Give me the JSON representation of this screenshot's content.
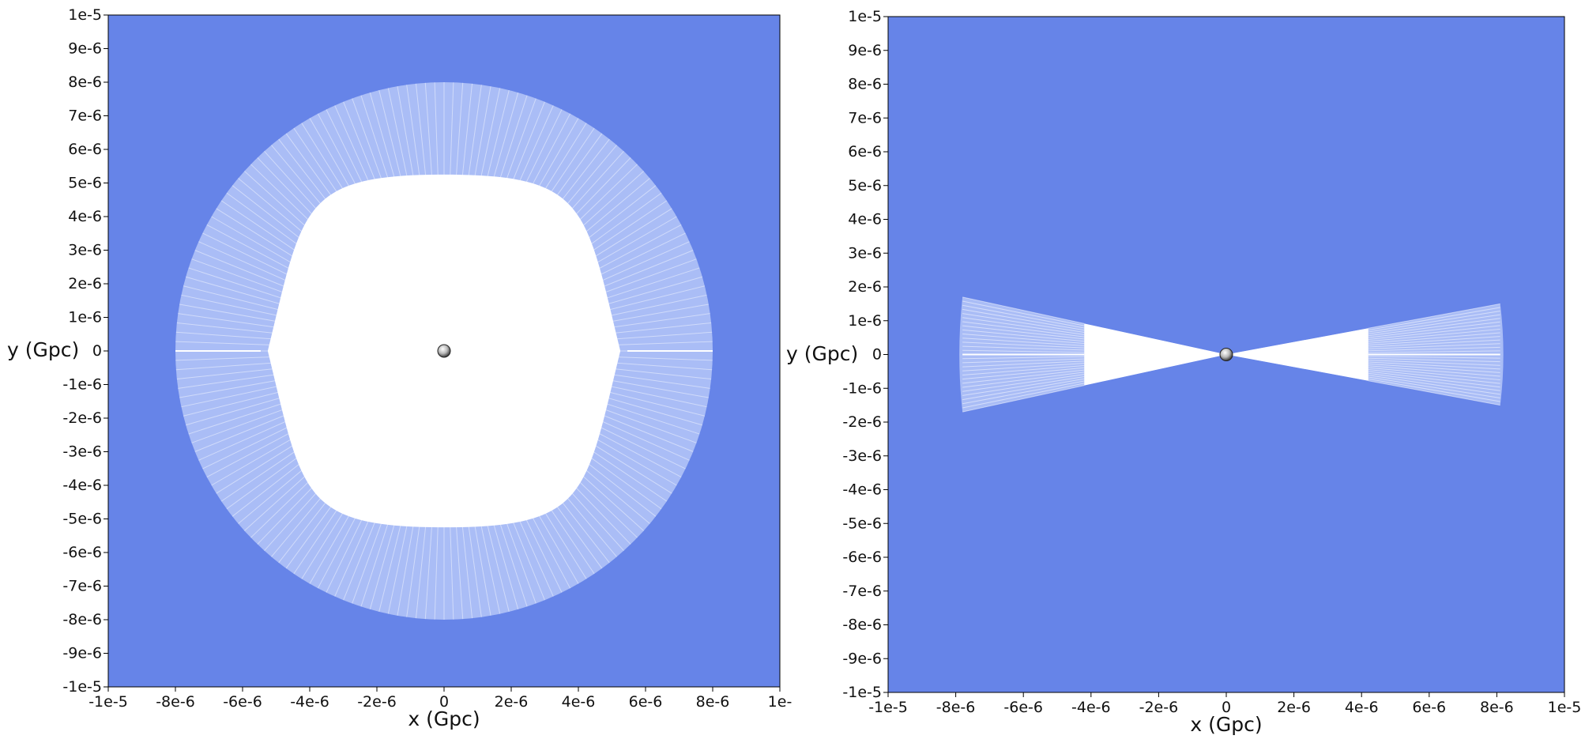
{
  "chart_data": [
    {
      "type": "scatter",
      "title": "",
      "xlabel": "x (Gpc)",
      "ylabel": "y (Gpc)",
      "xlim": [
        -1e-05,
        1e-05
      ],
      "ylim": [
        -1e-05,
        1e-05
      ],
      "x_ticks": [
        "-1e-5",
        "-8e-6",
        "-6e-6",
        "-4e-6",
        "-2e-6",
        "0",
        "2e-6",
        "4e-6",
        "6e-6",
        "8e-6",
        "1e-"
      ],
      "y_ticks": [
        "1e-5",
        "9e-6",
        "8e-6",
        "7e-6",
        "6e-6",
        "5e-6",
        "4e-6",
        "3e-6",
        "2e-6",
        "1e-6",
        "0",
        "-1e-6",
        "-2e-6",
        "-3e-6",
        "-4e-6",
        "-5e-6",
        "-6e-6",
        "-7e-6",
        "-8e-6",
        "-9e-6",
        "-1e-5"
      ],
      "grid": false,
      "colors": {
        "background": "#6684e8",
        "light": "#aabdf6",
        "white": "#ffffff"
      },
      "regions": {
        "disk_radius": 8e-06,
        "inner_radius": 4.2e-06
      },
      "markers": [
        {
          "x": 0,
          "y": 0
        }
      ]
    },
    {
      "type": "scatter",
      "title": "",
      "xlabel": "x (Gpc)",
      "ylabel": "y (Gpc)",
      "xlim": [
        -1e-05,
        1e-05
      ],
      "ylim": [
        -1e-05,
        1e-05
      ],
      "x_ticks": [
        "-1e-5",
        "-8e-6",
        "-6e-6",
        "-4e-6",
        "-2e-6",
        "0",
        "2e-6",
        "4e-6",
        "6e-6",
        "8e-6",
        "1e-5"
      ],
      "y_ticks": [
        "1e-5",
        "9e-6",
        "8e-6",
        "7e-6",
        "6e-6",
        "5e-6",
        "4e-6",
        "3e-6",
        "2e-6",
        "1e-6",
        "0",
        "-1e-6",
        "-2e-6",
        "-3e-6",
        "-4e-6",
        "-5e-6",
        "-6e-6",
        "-7e-6",
        "-8e-6",
        "-9e-6",
        "-1e-5"
      ],
      "grid": false,
      "colors": {
        "background": "#6684e8",
        "light": "#aabdf6",
        "white": "#ffffff"
      },
      "wedges": [
        {
          "side": "left",
          "outer_x": -7.8e-06,
          "half_height": 1.7e-06,
          "inner_x": -4.2e-06
        },
        {
          "side": "right",
          "outer_x": 8.1e-06,
          "half_height": 1.5e-06,
          "inner_x": 4.2e-06
        }
      ],
      "markers": [
        {
          "x": 0,
          "y": 0
        }
      ]
    }
  ]
}
